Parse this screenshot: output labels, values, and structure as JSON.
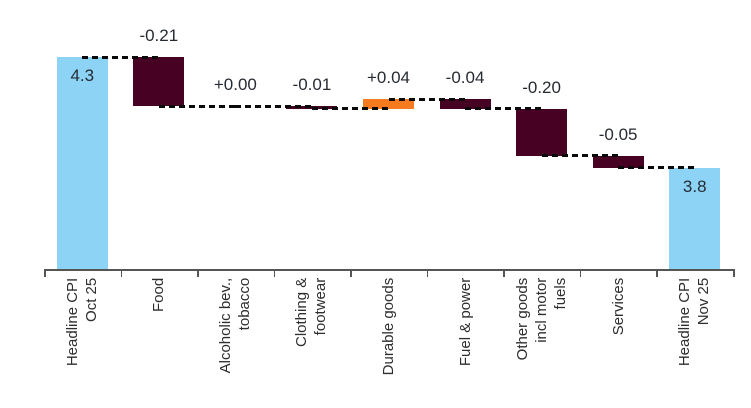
{
  "chart_data": {
    "type": "bar",
    "subtype": "waterfall",
    "title": "",
    "xlabel": "",
    "ylabel": "",
    "legend": "none",
    "gridlines": false,
    "categories": [
      "Headline CPI\nOct 25",
      "Food",
      "Alcoholic bev.,\ntobacco",
      "Clothing &\nfootwear",
      "Durable goods",
      "Fuel & power",
      "Other goods\nincl motor\nfuels",
      "Services",
      "Headline CPI\nNov 25"
    ],
    "bars": [
      {
        "slug": "headline-cpi-oct-25",
        "role": "total",
        "value": 4.3,
        "label": "4.3"
      },
      {
        "slug": "food",
        "role": "delta",
        "value": -0.21,
        "label": "-0.21"
      },
      {
        "slug": "alcoholic-bev-tobacco",
        "role": "delta",
        "value": 0.0,
        "label": "+0.00"
      },
      {
        "slug": "clothing-footwear",
        "role": "delta",
        "value": -0.01,
        "label": "-0.01"
      },
      {
        "slug": "durable-goods",
        "role": "delta",
        "value": 0.04,
        "label": "+0.04"
      },
      {
        "slug": "fuel-power",
        "role": "delta",
        "value": -0.04,
        "label": "-0.04"
      },
      {
        "slug": "other-goods-incl-motor-fuels",
        "role": "delta",
        "value": -0.2,
        "label": "-0.20"
      },
      {
        "slug": "services",
        "role": "delta",
        "value": -0.05,
        "label": "-0.05"
      },
      {
        "slug": "headline-cpi-nov-25",
        "role": "total",
        "value": 3.8,
        "label": "3.8"
      }
    ],
    "axis": {
      "y_min": 3.4,
      "y_max": 4.3,
      "connector_style": "dashed"
    },
    "colors": {
      "total_bar": "#8CD3F6",
      "negative_bar": "#470223",
      "positive_bar": "#F67B1E",
      "connector": "#0a0a0a",
      "axis": "#555555",
      "value_text": "#262b33",
      "category_text": "#2e2e2e"
    }
  }
}
